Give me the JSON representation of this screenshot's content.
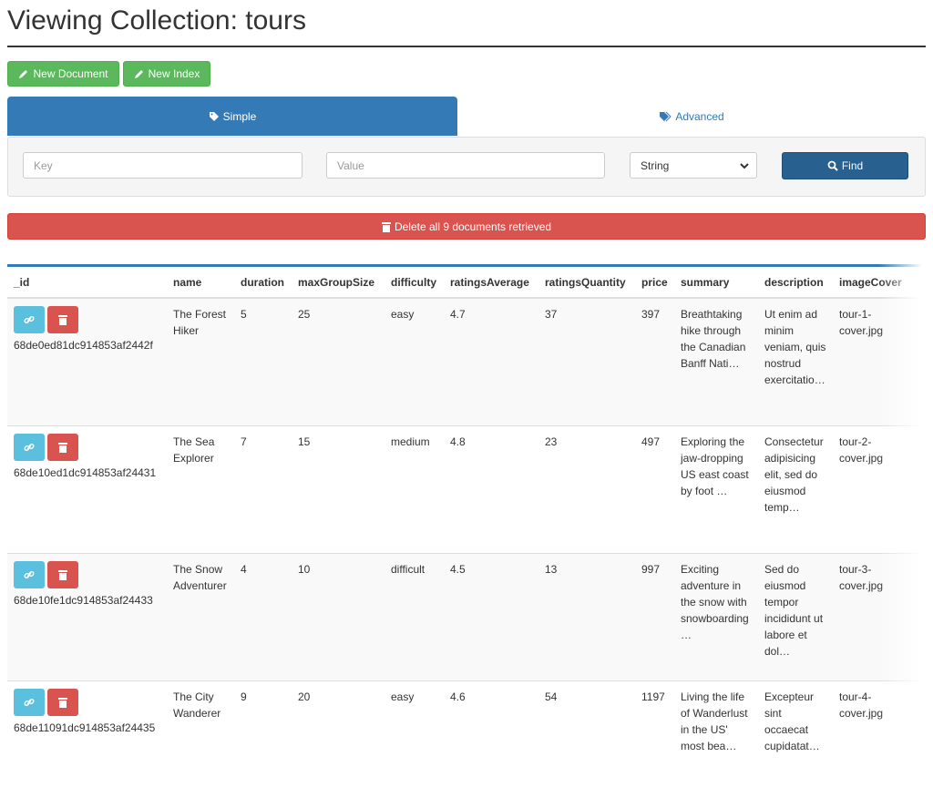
{
  "header": {
    "title": "Viewing Collection: tours"
  },
  "buttons": {
    "new_document": "New Document",
    "new_index": "New Index"
  },
  "tabs": {
    "simple": "Simple",
    "advanced": "Advanced"
  },
  "search": {
    "key_placeholder": "Key",
    "value_placeholder": "Value",
    "type": "String",
    "find": "Find"
  },
  "delete_all": "Delete all 9 documents retrieved",
  "table": {
    "columns": [
      "_id",
      "name",
      "duration",
      "maxGroupSize",
      "difficulty",
      "ratingsAverage",
      "ratingsQuantity",
      "price",
      "summary",
      "description",
      "imageCover"
    ],
    "rows": [
      [
        "68de0ed81dc914853af2442f",
        "The Forest Hiker",
        5,
        25,
        "easy",
        4.7,
        37,
        397,
        "Breathtaking hike through the Canadian Banff Nati…",
        "Ut enim ad minim veniam, quis nostrud exercitatio…",
        "tour-1-cover.jpg"
      ],
      [
        "68de10ed1dc914853af24431",
        "The Sea Explorer",
        7,
        15,
        "medium",
        4.8,
        23,
        497,
        "Exploring the jaw-dropping US east coast by foot …",
        "Consectetur adipisicing elit, sed do eiusmod temp…",
        "tour-2-cover.jpg"
      ],
      [
        "68de10fe1dc914853af24433",
        "The Snow Adventurer",
        4,
        10,
        "difficult",
        4.5,
        13,
        997,
        "Exciting adventure in the snow with snowboarding …",
        "Sed do eiusmod tempor incididunt ut labore et dol…",
        "tour-3-cover.jpg"
      ],
      [
        "68de11091dc914853af24435",
        "The City Wanderer",
        9,
        20,
        "easy",
        4.6,
        54,
        1197,
        "Living the life of Wanderlust in the US' most bea…",
        "Excepteur sint occaecat cupidatat…",
        "tour-4-cover.jpg"
      ]
    ]
  }
}
